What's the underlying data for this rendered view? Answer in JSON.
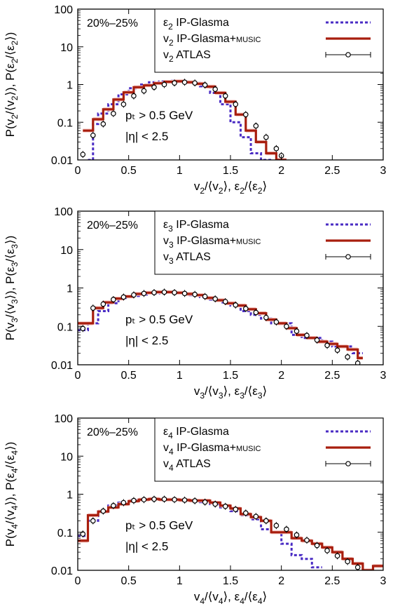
{
  "figure": {
    "colors": {
      "glasma": "#4a2cc4",
      "music": "#a81e0e",
      "music_band": "#f4c2bd",
      "atlas": "#000000"
    }
  },
  "chart_data": [
    {
      "type": "line",
      "panel": "v2",
      "centrality": "20%–25%",
      "x_scale": "linear",
      "y_scale": "log",
      "xlim": [
        0,
        3
      ],
      "ylim": [
        0.01,
        100
      ],
      "x_ticks": [
        "0",
        "0.5",
        "1",
        "1.5",
        "2",
        "2.5",
        "3"
      ],
      "y_ticks": [
        "0.01",
        "0.1",
        "1",
        "10",
        "100"
      ],
      "xlabel": {
        "n": "2"
      },
      "ylabel": {
        "n": "2"
      },
      "annotation": {
        "pt": "pₜ > 0.5 GeV",
        "eta": "|η| < 2.5"
      },
      "legend": {
        "placement": "top-right",
        "entries": [
          {
            "sym": "ε",
            "sub": "2",
            "text": " IP-Glasma",
            "style": "dotted",
            "series": 0
          },
          {
            "sym": "v",
            "sub": "2",
            "text": " IP-Glasma+",
            "small": "MUSIC",
            "style": "solid",
            "series": 1
          },
          {
            "sym": "v",
            "sub": "2",
            "text": " ATLAS",
            "style": "points",
            "series": 2
          }
        ]
      },
      "series": [
        {
          "kind": "step",
          "color": "glasma",
          "dashed": true,
          "edges": [
            0.1,
            0.15,
            0.2,
            0.3,
            0.4,
            0.5,
            0.6,
            0.7,
            0.8,
            0.9,
            1.0,
            1.1,
            1.2,
            1.3,
            1.4,
            1.5,
            1.6,
            1.7,
            1.8,
            1.9
          ],
          "values": [
            0.01,
            0.09,
            0.17,
            0.3,
            0.55,
            0.8,
            1.0,
            1.15,
            1.2,
            1.25,
            1.2,
            1.1,
            0.9,
            0.6,
            0.3,
            0.1,
            0.04,
            0.015,
            0.01
          ]
        },
        {
          "kind": "step",
          "color": "music",
          "band": true,
          "edges": [
            0.05,
            0.15,
            0.25,
            0.35,
            0.45,
            0.55,
            0.65,
            0.75,
            0.85,
            0.95,
            1.05,
            1.15,
            1.25,
            1.35,
            1.45,
            1.55,
            1.65,
            1.75,
            1.85,
            1.95,
            2.05
          ],
          "values": [
            0.06,
            0.12,
            0.22,
            0.4,
            0.62,
            0.85,
            0.95,
            1.08,
            1.18,
            1.22,
            1.15,
            1.05,
            0.88,
            0.6,
            0.35,
            0.16,
            0.06,
            0.03,
            0.015,
            0.01
          ]
        },
        {
          "kind": "points",
          "color": "atlas",
          "x": [
            0.05,
            0.15,
            0.25,
            0.35,
            0.45,
            0.55,
            0.65,
            0.75,
            0.85,
            0.95,
            1.05,
            1.15,
            1.25,
            1.35,
            1.45,
            1.55,
            1.65,
            1.75,
            1.85,
            1.95,
            2.0
          ],
          "y": [
            0.014,
            0.045,
            0.09,
            0.17,
            0.3,
            0.5,
            0.68,
            0.85,
            1.0,
            1.1,
            1.15,
            1.1,
            0.97,
            0.75,
            0.5,
            0.3,
            0.16,
            0.08,
            0.04,
            0.02,
            0.013
          ]
        }
      ]
    },
    {
      "type": "line",
      "panel": "v3",
      "centrality": "20%–25%",
      "x_scale": "linear",
      "y_scale": "log",
      "xlim": [
        0,
        3
      ],
      "ylim": [
        0.01,
        100
      ],
      "x_ticks": [
        "0",
        "0.5",
        "1",
        "1.5",
        "2",
        "2.5",
        "3"
      ],
      "y_ticks": [
        "0.01",
        "0.1",
        "1",
        "10",
        "100"
      ],
      "xlabel": {
        "n": "3"
      },
      "ylabel": {
        "n": "3"
      },
      "annotation": {
        "pt": "pₜ > 0.5 GeV",
        "eta": "|η| < 2.5"
      },
      "legend": {
        "placement": "top-right",
        "entries": [
          {
            "sym": "ε",
            "sub": "3",
            "text": " IP-Glasma",
            "style": "dotted",
            "series": 0
          },
          {
            "sym": "v",
            "sub": "3",
            "text": " IP-Glasma+",
            "small": "MUSIC",
            "style": "solid",
            "series": 1
          },
          {
            "sym": "v",
            "sub": "3",
            "text": " ATLAS",
            "style": "points",
            "series": 2
          }
        ]
      },
      "series": [
        {
          "kind": "step",
          "color": "glasma",
          "dashed": true,
          "edges": [
            0.0,
            0.1,
            0.2,
            0.3,
            0.4,
            0.5,
            0.6,
            0.7,
            0.8,
            0.9,
            1.0,
            1.1,
            1.2,
            1.3,
            1.4,
            1.5,
            1.6,
            1.7,
            1.8,
            1.9,
            2.0,
            2.1,
            2.2,
            2.3,
            2.4,
            2.5,
            2.6,
            2.7,
            2.8
          ],
          "values": [
            0.08,
            0.12,
            0.25,
            0.4,
            0.55,
            0.62,
            0.68,
            0.72,
            0.75,
            0.76,
            0.72,
            0.65,
            0.58,
            0.5,
            0.42,
            0.35,
            0.25,
            0.2,
            0.16,
            0.12,
            0.12,
            0.06,
            0.05,
            0.05,
            0.04,
            0.03,
            0.03,
            0.02
          ]
        },
        {
          "kind": "step",
          "color": "music",
          "band": true,
          "edges": [
            0.0,
            0.15,
            0.25,
            0.35,
            0.45,
            0.55,
            0.65,
            0.75,
            0.85,
            0.95,
            1.05,
            1.15,
            1.25,
            1.35,
            1.45,
            1.55,
            1.65,
            1.75,
            1.85,
            1.95,
            2.05,
            2.15,
            2.25,
            2.35,
            2.45,
            2.55,
            2.65,
            2.75,
            2.8
          ],
          "values": [
            0.12,
            0.3,
            0.42,
            0.53,
            0.6,
            0.7,
            0.75,
            0.78,
            0.78,
            0.75,
            0.7,
            0.65,
            0.55,
            0.48,
            0.4,
            0.35,
            0.28,
            0.22,
            0.15,
            0.12,
            0.09,
            0.06,
            0.05,
            0.04,
            0.035,
            0.03,
            0.025,
            0.015
          ]
        },
        {
          "kind": "points",
          "color": "atlas",
          "x": [
            0.05,
            0.15,
            0.25,
            0.35,
            0.45,
            0.55,
            0.65,
            0.75,
            0.85,
            0.95,
            1.05,
            1.15,
            1.25,
            1.35,
            1.45,
            1.55,
            1.65,
            1.75,
            1.85,
            1.95,
            2.05,
            2.15,
            2.25,
            2.35,
            2.45,
            2.55,
            2.65,
            2.75
          ],
          "y": [
            0.088,
            0.3,
            0.38,
            0.5,
            0.58,
            0.66,
            0.72,
            0.76,
            0.78,
            0.76,
            0.72,
            0.68,
            0.6,
            0.52,
            0.44,
            0.36,
            0.29,
            0.23,
            0.17,
            0.13,
            0.1,
            0.075,
            0.058,
            0.044,
            0.032,
            0.024,
            0.016,
            0.011
          ]
        }
      ]
    },
    {
      "type": "line",
      "panel": "v4",
      "centrality": "20%–25%",
      "x_scale": "linear",
      "y_scale": "log",
      "xlim": [
        0,
        3
      ],
      "ylim": [
        0.01,
        100
      ],
      "x_ticks": [
        "0",
        "0.5",
        "1",
        "1.5",
        "2",
        "2.5",
        "3"
      ],
      "y_ticks": [
        "0.01",
        "0.1",
        "1",
        "10",
        "100"
      ],
      "xlabel": {
        "n": "4"
      },
      "ylabel": {
        "n": "4"
      },
      "annotation": {
        "pt": "pₜ > 0.5 GeV",
        "eta": "|η| < 2.5"
      },
      "legend": {
        "placement": "top-right",
        "entries": [
          {
            "sym": "ε",
            "sub": "4",
            "text": " IP-Glasma",
            "style": "dotted",
            "series": 0
          },
          {
            "sym": "v",
            "sub": "4",
            "text": " IP-Glasma+",
            "small": "MUSIC",
            "style": "solid",
            "series": 1
          },
          {
            "sym": "v",
            "sub": "4",
            "text": " ATLAS",
            "style": "points",
            "series": 2
          }
        ]
      },
      "series": [
        {
          "kind": "step",
          "color": "glasma",
          "dashed": true,
          "edges": [
            0.0,
            0.1,
            0.2,
            0.3,
            0.4,
            0.5,
            0.6,
            0.7,
            0.8,
            0.9,
            1.0,
            1.1,
            1.2,
            1.3,
            1.4,
            1.5,
            1.6,
            1.7,
            1.8,
            1.9,
            2.0,
            2.1,
            2.2,
            2.3,
            2.4
          ],
          "values": [
            0.08,
            0.2,
            0.35,
            0.5,
            0.6,
            0.7,
            0.72,
            0.74,
            0.73,
            0.72,
            0.7,
            0.68,
            0.62,
            0.55,
            0.45,
            0.36,
            0.28,
            0.22,
            0.12,
            0.1,
            0.05,
            0.025,
            0.02,
            0.012
          ]
        },
        {
          "kind": "step",
          "color": "music",
          "band": true,
          "edges": [
            0.0,
            0.1,
            0.2,
            0.3,
            0.4,
            0.5,
            0.6,
            0.7,
            0.8,
            0.9,
            1.0,
            1.1,
            1.2,
            1.3,
            1.4,
            1.5,
            1.6,
            1.7,
            1.8,
            1.9,
            2.0,
            2.1,
            2.2,
            2.3,
            2.4,
            2.5,
            2.6,
            2.7,
            2.8,
            2.9,
            3.0
          ],
          "values": [
            0.06,
            0.28,
            0.35,
            0.45,
            0.55,
            0.66,
            0.72,
            0.75,
            0.72,
            0.72,
            0.7,
            0.68,
            0.68,
            0.6,
            0.5,
            0.42,
            0.3,
            0.25,
            0.2,
            0.1,
            0.1,
            0.07,
            0.06,
            0.05,
            0.04,
            0.03,
            0.02,
            0.015,
            0.01,
            0.013
          ]
        },
        {
          "kind": "points",
          "color": "atlas",
          "x": [
            0.05,
            0.15,
            0.25,
            0.35,
            0.45,
            0.55,
            0.65,
            0.75,
            0.85,
            0.95,
            1.05,
            1.15,
            1.25,
            1.35,
            1.45,
            1.55,
            1.65,
            1.75,
            1.85,
            1.95,
            2.05,
            2.15,
            2.25,
            2.35,
            2.45,
            2.55,
            2.65,
            2.75
          ],
          "y": [
            0.09,
            0.2,
            0.36,
            0.5,
            0.6,
            0.68,
            0.72,
            0.74,
            0.74,
            0.72,
            0.7,
            0.67,
            0.62,
            0.55,
            0.48,
            0.4,
            0.32,
            0.26,
            0.2,
            0.15,
            0.12,
            0.085,
            0.062,
            0.045,
            0.033,
            0.024,
            0.017,
            0.012
          ]
        }
      ]
    }
  ]
}
